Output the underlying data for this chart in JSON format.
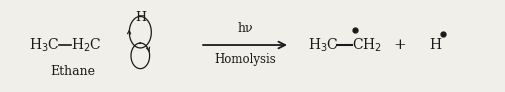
{
  "bg_color": "#f0efea",
  "text_color": "#1a1a1a",
  "figsize": [
    5.05,
    0.92
  ],
  "dpi": 100,
  "hv_label": "hν",
  "homolysis_label": "Homolysis",
  "ethane_label": "Ethane",
  "font_size_main": 10,
  "font_size_label": 9,
  "font_size_small": 9
}
